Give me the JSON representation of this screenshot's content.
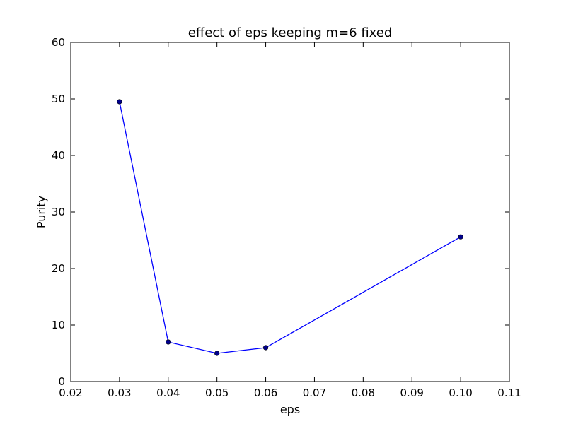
{
  "chart_data": {
    "type": "line",
    "title": "effect of eps keeping m=6 fixed",
    "xlabel": "eps",
    "ylabel": "Purity",
    "xlim": [
      0.02,
      0.11
    ],
    "ylim": [
      0,
      60
    ],
    "xticks": [
      0.02,
      0.03,
      0.04,
      0.05,
      0.06,
      0.07,
      0.08,
      0.09,
      0.1,
      0.11
    ],
    "xtick_labels": [
      "0.02",
      "0.03",
      "0.04",
      "0.05",
      "0.06",
      "0.07",
      "0.08",
      "0.09",
      "0.10",
      "0.11"
    ],
    "yticks": [
      0,
      10,
      20,
      30,
      40,
      50,
      60
    ],
    "ytick_labels": [
      "0",
      "10",
      "20",
      "30",
      "40",
      "50",
      "60"
    ],
    "grid": false,
    "series": [
      {
        "x": [
          0.03,
          0.04,
          0.05,
          0.06,
          0.1
        ],
        "y": [
          49.5,
          7,
          5,
          6,
          25.6
        ],
        "color": "#0000ff",
        "marker": "circle",
        "marker_color": "#00008b"
      }
    ]
  }
}
